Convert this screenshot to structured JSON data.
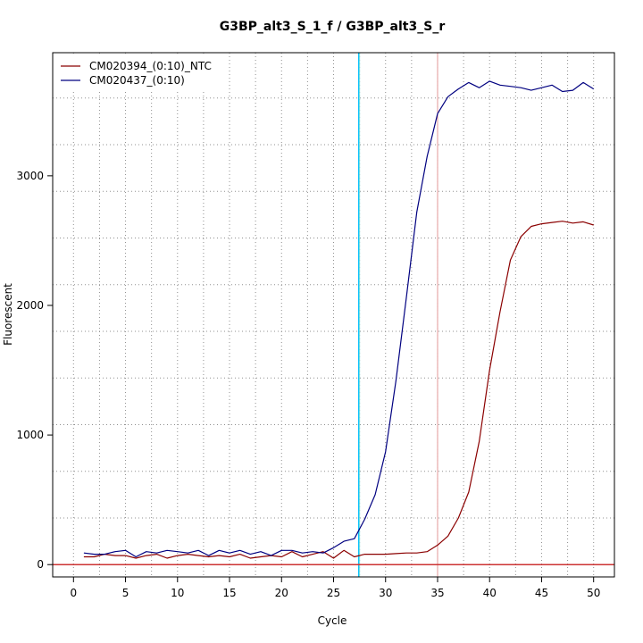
{
  "chart_data": {
    "type": "line",
    "title": "G3BP_alt3_S_1_f / G3BP_alt3_S_r",
    "xlabel": "Cycle",
    "ylabel": "Fluorescent",
    "xlim": [
      -2,
      52
    ],
    "ylim": [
      -95,
      3950
    ],
    "x_ticks": [
      0,
      5,
      10,
      15,
      20,
      25,
      30,
      35,
      40,
      45,
      50
    ],
    "x_tick_labels": [
      "0",
      "5",
      "10",
      "15",
      "20",
      "25",
      "30",
      "35",
      "40",
      "45",
      "50"
    ],
    "y_ticks": [
      0,
      1000,
      2000,
      3000
    ],
    "y_tick_labels": [
      "0",
      "1000",
      "2000",
      "3000"
    ],
    "x_grid": [
      0,
      2.5,
      5,
      7.5,
      10,
      12.5,
      15,
      17.5,
      20,
      22.5,
      25,
      27.5,
      30,
      32.5,
      35,
      37.5,
      40,
      42.5,
      45,
      47.5,
      50
    ],
    "y_grid": [
      0,
      360,
      720,
      1080,
      1440,
      1800,
      2160,
      2520,
      2880,
      3240,
      3600
    ],
    "grid": true,
    "legend": "top-left",
    "threshold_y": 0,
    "threshold_color": "#cc3333",
    "vlines": [
      {
        "x": 27.4,
        "color": "#00bfff"
      },
      {
        "x": 27.5,
        "color": "#66dddd"
      },
      {
        "x": 35.0,
        "color": "#e39a9a"
      }
    ],
    "series": [
      {
        "name": "CM020394_(0:10)_NTC",
        "color": "#8b0000",
        "x": [
          1,
          2,
          3,
          4,
          5,
          6,
          7,
          8,
          9,
          10,
          11,
          12,
          13,
          14,
          15,
          16,
          17,
          18,
          19,
          20,
          21,
          22,
          23,
          24,
          25,
          26,
          27,
          28,
          29,
          30,
          31,
          32,
          33,
          34,
          35,
          36,
          37,
          38,
          39,
          40,
          41,
          42,
          43,
          44,
          45,
          46,
          47,
          48,
          49,
          50
        ],
        "y": [
          60,
          60,
          80,
          70,
          70,
          50,
          70,
          80,
          50,
          70,
          80,
          70,
          60,
          70,
          60,
          80,
          50,
          60,
          70,
          60,
          100,
          60,
          80,
          100,
          50,
          110,
          60,
          80,
          80,
          80,
          85,
          90,
          90,
          100,
          150,
          220,
          360,
          560,
          950,
          1500,
          1950,
          2350,
          2530,
          2610,
          2630,
          2640,
          2650,
          2635,
          2645,
          2620
        ]
      },
      {
        "name": "CM020437_(0:10)",
        "color": "#000080",
        "x": [
          1,
          2,
          3,
          4,
          5,
          6,
          7,
          8,
          9,
          10,
          11,
          12,
          13,
          14,
          15,
          16,
          17,
          18,
          19,
          20,
          21,
          22,
          23,
          24,
          25,
          26,
          27,
          28,
          29,
          30,
          31,
          32,
          33,
          34,
          35,
          36,
          37,
          38,
          39,
          40,
          41,
          42,
          43,
          44,
          45,
          46,
          47,
          48,
          49,
          50
        ],
        "y": [
          90,
          80,
          80,
          100,
          110,
          60,
          100,
          90,
          110,
          100,
          90,
          110,
          70,
          110,
          90,
          110,
          80,
          100,
          70,
          110,
          110,
          90,
          100,
          90,
          130,
          180,
          200,
          350,
          540,
          870,
          1420,
          2060,
          2720,
          3150,
          3480,
          3610,
          3670,
          3720,
          3680,
          3730,
          3700,
          3690,
          3680,
          3660,
          3680,
          3700,
          3650,
          3660,
          3720,
          3670
        ]
      }
    ]
  }
}
